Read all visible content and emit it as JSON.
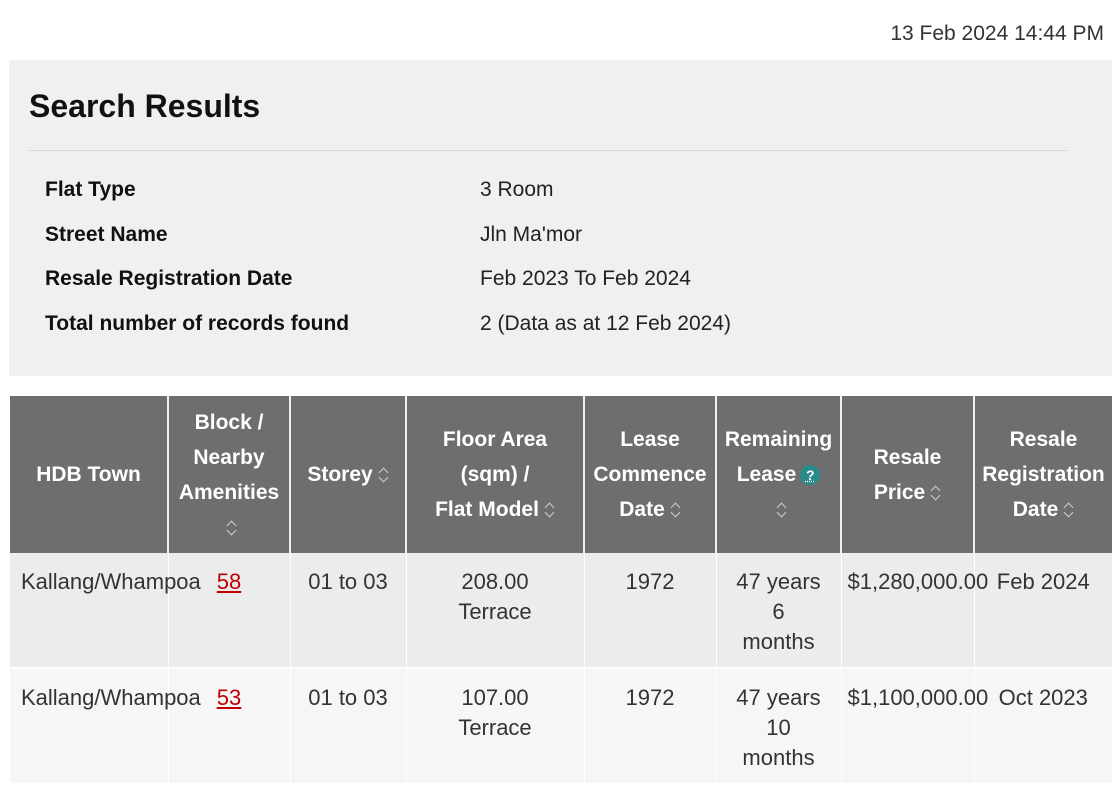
{
  "timestamp": "13 Feb 2024 14:44 PM",
  "summary": {
    "title": "Search Results",
    "fields": [
      {
        "label": "Flat Type",
        "value": "3 Room"
      },
      {
        "label": "Street Name",
        "value": "Jln Ma'mor"
      },
      {
        "label": "Resale Registration Date",
        "value": "Feb 2023 To Feb 2024"
      },
      {
        "label": "Total number of records found",
        "value": "2 (Data as at 12 Feb 2024)"
      }
    ]
  },
  "table": {
    "headers": {
      "town": "HDB Town",
      "block_l1": "Block /",
      "block_l2": "Nearby",
      "block_l3": "Amenities",
      "storey": "Storey",
      "area_l1": "Floor Area",
      "area_l2": "(sqm) /",
      "area_l3": "Flat Model",
      "lease_l1": "Lease",
      "lease_l2": "Commence",
      "lease_l3": "Date",
      "remaining_l1": "Remaining",
      "remaining_l2": "Lease",
      "remaining_help": "?",
      "price_l1": "Resale",
      "price_l2": "Price",
      "regdate_l1": "Resale",
      "regdate_l2": "Registration",
      "regdate_l3": "Date"
    },
    "rows": [
      {
        "town": "Kallang/Whampoa",
        "block": "58",
        "storey": "01 to 03",
        "area": "208.00",
        "model": "Terrace",
        "lease_commence": "1972",
        "remaining_l1": "47 years",
        "remaining_l2": "6",
        "remaining_l3": "months",
        "price": "$1,280,000.00",
        "reg_date": "Feb 2024"
      },
      {
        "town": "Kallang/Whampoa",
        "block": "53",
        "storey": "01 to 03",
        "area": "107.00",
        "model": "Terrace",
        "lease_commence": "1972",
        "remaining_l1": "47 years",
        "remaining_l2": "10",
        "remaining_l3": "months",
        "price": "$1,100,000.00",
        "reg_date": "Oct 2023"
      }
    ]
  },
  "icons": {
    "sort": "sort-icon",
    "help": "help-icon"
  },
  "colors": {
    "header_bg": "#6e6e6e",
    "link": "#c00000",
    "help_icon": "#2a8a8a",
    "panel_bg": "#f0f0f0"
  }
}
